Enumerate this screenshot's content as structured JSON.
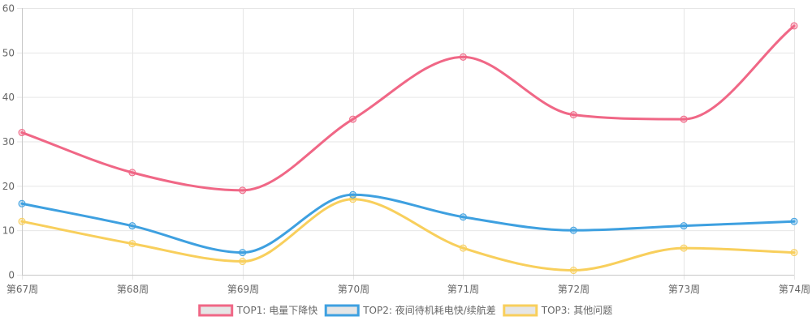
{
  "chart_data": {
    "type": "line",
    "categories": [
      "第67周",
      "第68周",
      "第69周",
      "第70周",
      "第71周",
      "第72周",
      "第73周",
      "第74周"
    ],
    "series": [
      {
        "name": "TOP1: 电量下降快",
        "values": [
          32,
          23,
          19,
          35,
          49,
          36,
          35,
          56
        ],
        "color": "#f06786"
      },
      {
        "name": "TOP2: 夜间待机耗电快/续航差",
        "values": [
          16,
          11,
          5,
          18,
          13,
          10,
          11,
          12
        ],
        "color": "#3ea0e0"
      },
      {
        "name": "TOP3: 其他问题",
        "values": [
          12,
          7,
          3,
          17,
          6,
          1,
          6,
          5
        ],
        "color": "#f8cf5c"
      }
    ],
    "ylim": [
      0,
      60
    ],
    "yticks": [
      0,
      10,
      20,
      30,
      40,
      50,
      60
    ],
    "grid": true,
    "legend_position": "bottom",
    "curve": "smooth",
    "legend_fill": "#e6e6e6"
  }
}
